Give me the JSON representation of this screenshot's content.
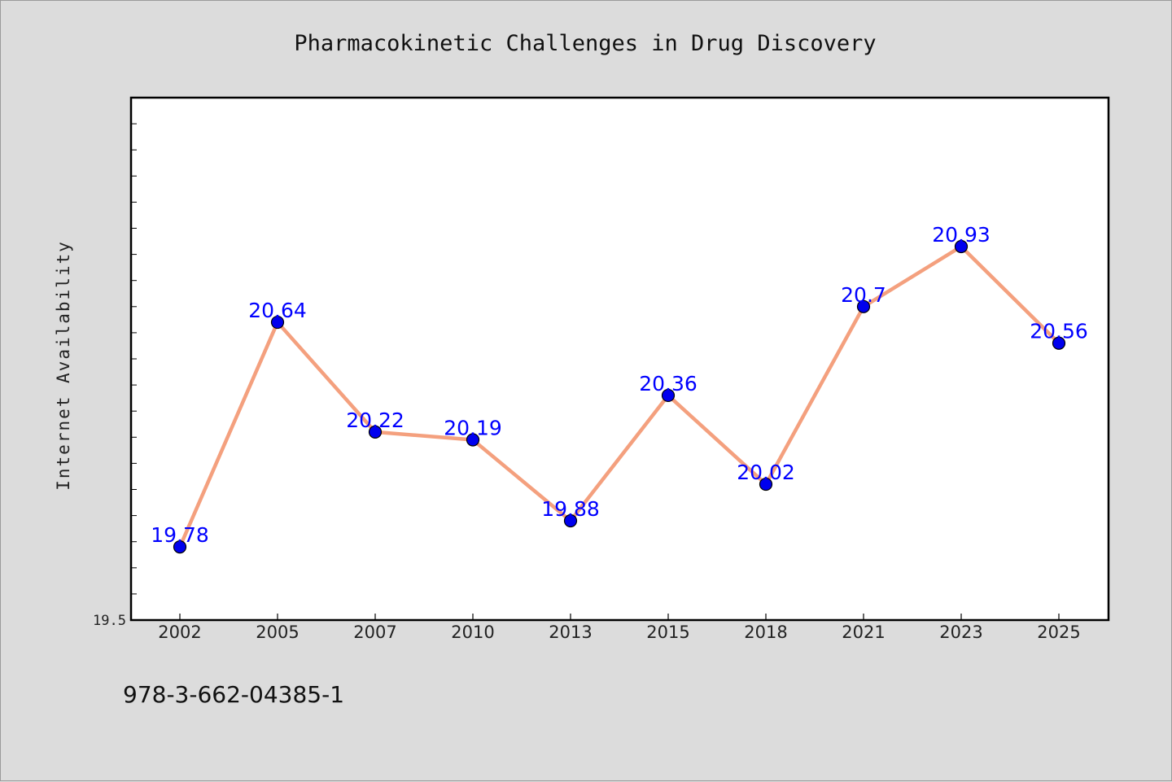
{
  "chart_data": {
    "type": "line",
    "title": "Pharmacokinetic Challenges in Drug Discovery",
    "xlabel": "",
    "ylabel": "Internet Availability",
    "categories": [
      "2002",
      "2005",
      "2007",
      "2010",
      "2013",
      "2015",
      "2018",
      "2021",
      "2023",
      "2025"
    ],
    "series": [
      {
        "values": [
          19.78,
          20.64,
          20.22,
          20.19,
          19.88,
          20.36,
          20.02,
          20.7,
          20.93,
          20.56
        ],
        "labels": [
          "19.78",
          "20.64",
          "20.22",
          "20.19",
          "19.88",
          "20.36",
          "20.02",
          "20.7",
          "20.93",
          "20.56"
        ],
        "line_color": "#f4a07e",
        "marker_color": "#0000ee",
        "label_color": "#0000ff"
      }
    ],
    "ylim": [
      19.5,
      21.5
    ],
    "y_tick_labels": [
      "19.5"
    ],
    "grid": false,
    "legend": "none"
  },
  "footer": {
    "isbn": "978-3-662-04385-1"
  },
  "colors": {
    "background": "#dcdcdc",
    "plot_area": "#ffffff",
    "axis": "#000000"
  }
}
